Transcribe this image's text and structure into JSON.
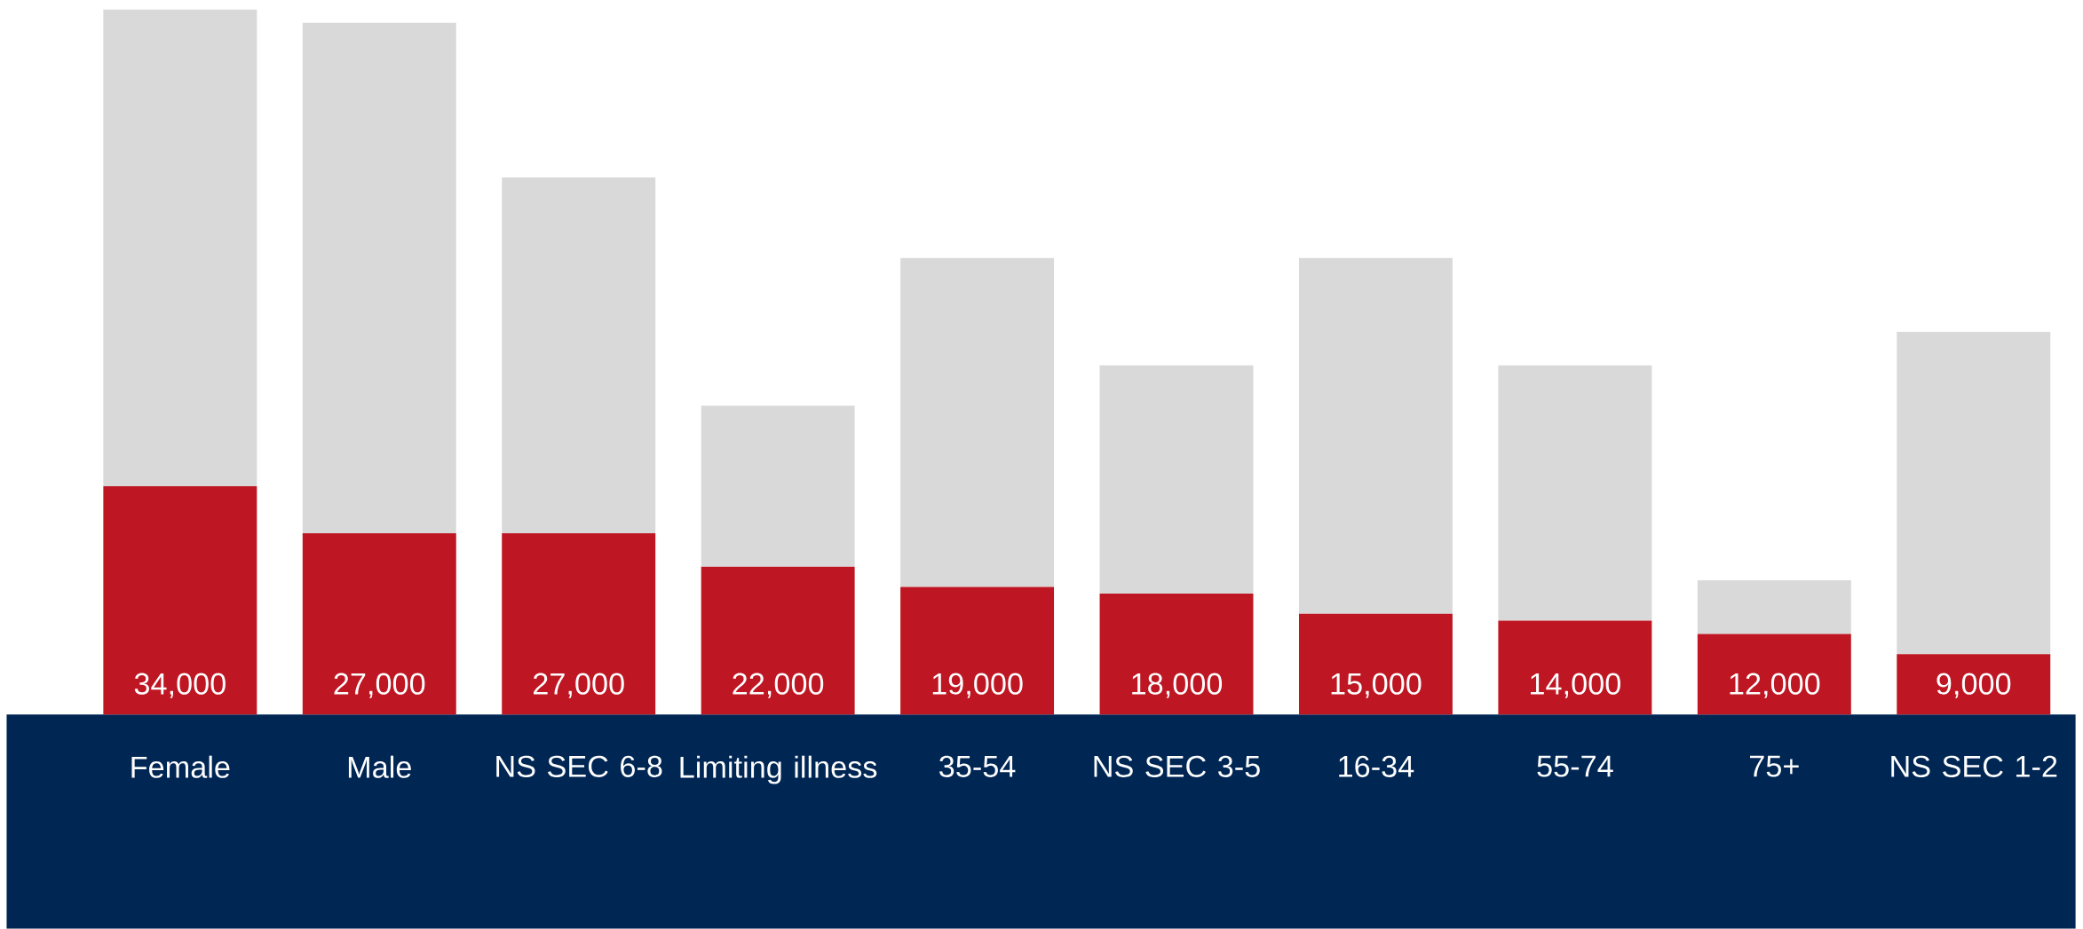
{
  "chart_data": {
    "type": "bar",
    "stacked": true,
    "categories": [
      "Female",
      "Male",
      "NS SEC 6-8",
      "Limiting illness",
      "35-54",
      "NS SEC 3-5",
      "16-34",
      "55-74",
      "75+",
      "NS SEC 1-2"
    ],
    "series": [
      {
        "color": "#be1622",
        "values": [
          34000,
          27000,
          27000,
          22000,
          19000,
          18000,
          15000,
          14000,
          12000,
          9000
        ],
        "value_labels": [
          "34,000",
          "27,000",
          "27,000",
          "22,000",
          "19,000",
          "18,000",
          "15,000",
          "14,000",
          "12,000",
          "9,000"
        ]
      },
      {
        "color": "#d9d9d9",
        "values": [
          71000,
          76000,
          53000,
          24000,
          49000,
          34000,
          53000,
          38000,
          8000,
          48000
        ]
      }
    ]
  }
}
